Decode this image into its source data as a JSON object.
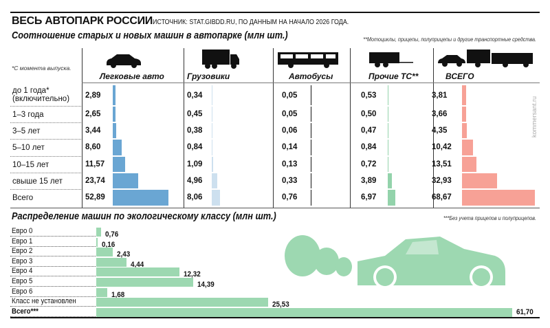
{
  "header": {
    "title": "ВЕСЬ АВТОПАРК РОССИИ",
    "source": "ИСТОЧНИК: STAT.GIBDD.RU, ПО ДАННЫМ НА НАЧАЛО 2026 ГОДА."
  },
  "watermark": "kommersant.ru",
  "colors": {
    "cars": "#6aa6d3",
    "trucks": "#cde0ef",
    "buses": "#111111",
    "other": "#93d3ab",
    "total": "#f7a196",
    "eco": "#9dd8b1"
  },
  "chart_data": [
    {
      "type": "table",
      "title": "Соотношение старых и новых машин в автопарке (млн шт.)",
      "footnote_left": "*С момента выпуска.",
      "footnote_right": "**Мотоциклы, прицепы, полуприцепы и другие транспортные средства.",
      "categories": [
        "до 1 года* (включительно)",
        "1–3 года",
        "3–5 лет",
        "5–10 лет",
        "10–15 лет",
        "свыше 15 лет",
        "Всего"
      ],
      "series": [
        {
          "name": "Легковые авто",
          "icon": "car-icon",
          "values": [
            "2,89",
            "2,65",
            "3,44",
            "8,60",
            "11,57",
            "23,74",
            "52,89"
          ]
        },
        {
          "name": "Грузовики",
          "icon": "truck-icon",
          "values": [
            "0,34",
            "0,45",
            "0,38",
            "0,84",
            "1,09",
            "4,96",
            "8,06"
          ]
        },
        {
          "name": "Автобусы",
          "icon": "bus-icon",
          "values": [
            "0,05",
            "0,05",
            "0,06",
            "0,14",
            "0,13",
            "0,33",
            "0,76"
          ]
        },
        {
          "name": "Прочие ТС**",
          "icon": "trailer-icon",
          "values": [
            "0,53",
            "0,50",
            "0,47",
            "0,84",
            "0,72",
            "3,89",
            "6,97"
          ]
        },
        {
          "name": "ВСЕГО",
          "icon": "all-vehicles-icon",
          "values": [
            "3,81",
            "3,66",
            "4,35",
            "10,42",
            "13,51",
            "32,93",
            "68,67"
          ]
        }
      ]
    },
    {
      "type": "bar",
      "title": "Распределение машин по экологическому классу (млн шт.)",
      "footnote": "***Без учета прицепов и полуприцепов.",
      "categories": [
        "Евро 0",
        "Евро 1",
        "Евро 2",
        "Евро 3",
        "Евро 4",
        "Евро 5",
        "Евро 6",
        "Класс не установлен",
        "Всего***"
      ],
      "values": [
        "0,76",
        "0,16",
        "2,43",
        "4,44",
        "12,32",
        "14,39",
        "1,68",
        "25,53",
        "61,70"
      ]
    }
  ]
}
